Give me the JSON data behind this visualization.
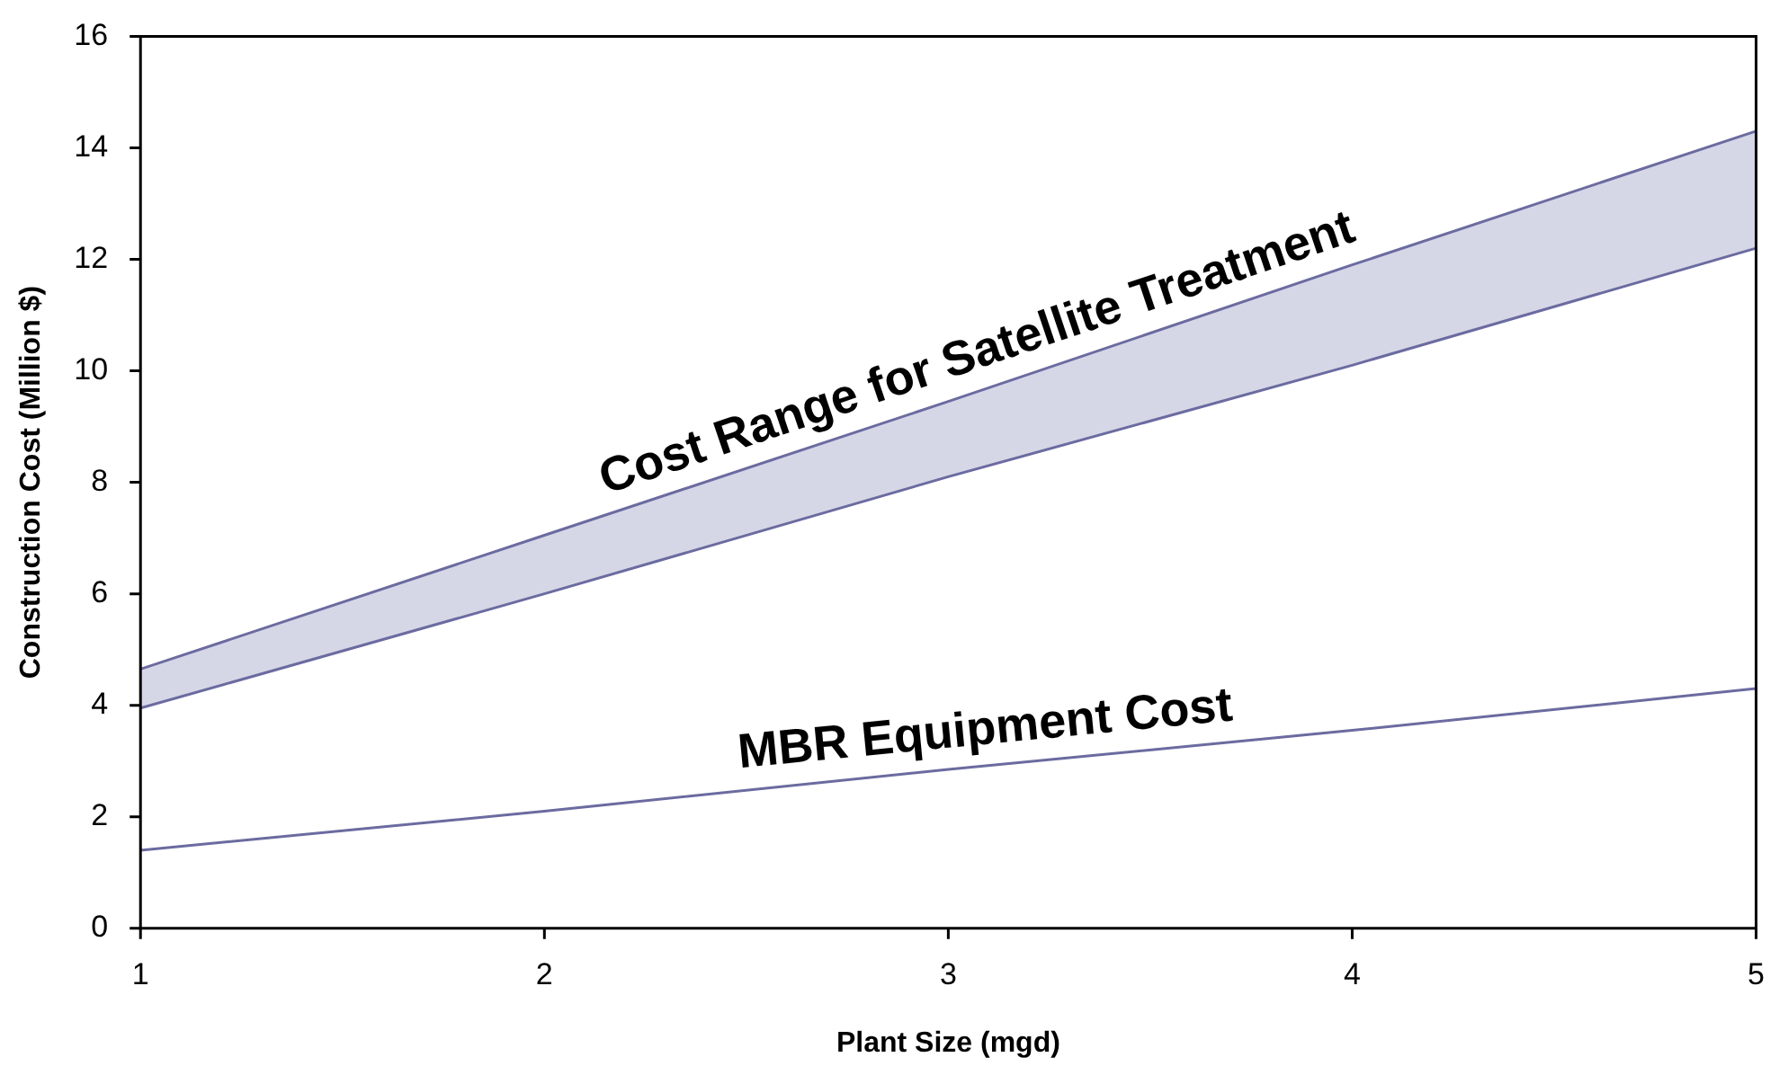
{
  "chart_data": {
    "type": "line",
    "xlabel": "Plant Size (mgd)",
    "ylabel": "Construction Cost (Million $)",
    "x": [
      1,
      2,
      3,
      4,
      5
    ],
    "series": [
      {
        "type": "line",
        "color": "#6b6ba0",
        "values": [
          3.95,
          6.0,
          8.1,
          10.1,
          12.2
        ]
      },
      {
        "type": "area",
        "color": "#d5d7e7",
        "values": [
          4.65,
          7.05,
          9.45,
          11.9,
          14.3
        ]
      },
      {
        "type": "line",
        "color": "#6b6ba0",
        "values": [
          1.4,
          2.1,
          2.85,
          3.55,
          4.3
        ]
      }
    ],
    "xlim": [
      1,
      5
    ],
    "xticks": [
      1,
      2,
      3,
      4,
      5
    ],
    "ylim": [
      0,
      16
    ],
    "yticks": [
      0,
      2,
      4,
      6,
      8,
      10,
      12,
      14,
      16
    ],
    "grid": false,
    "legend": false,
    "marker": "none",
    "line_style": "solid",
    "annotations": [
      "Cost Range for Satellite Treatment",
      "MBR Equipment Cost"
    ]
  }
}
